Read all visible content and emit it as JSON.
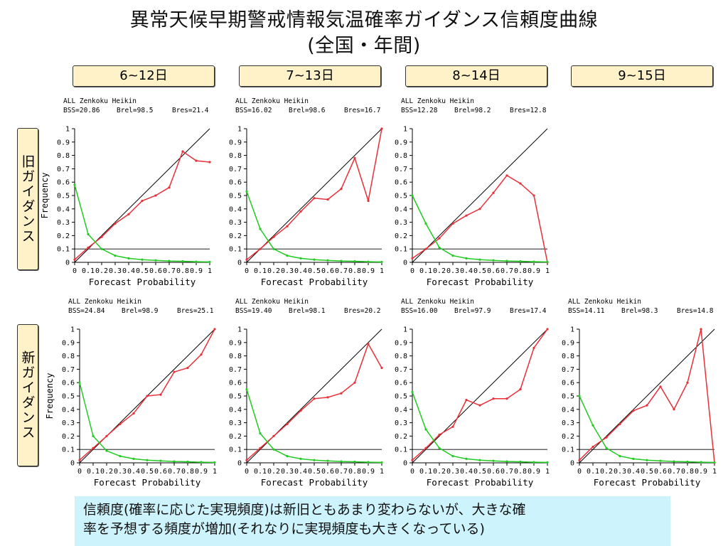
{
  "title": {
    "line1": "異常天候早期警戒情報気温確率ガイダンス信頼度曲線",
    "line2": "(全国・年間)"
  },
  "periods": [
    "6~12日",
    "7~13日",
    "8~14日",
    "9~15日"
  ],
  "rows": {
    "old": "旧ガイダンス",
    "new": "新ガイダンス"
  },
  "note": {
    "line1": "信頼度(確率に応じた実現頻度)は新旧ともあまり変わらないが、大きな確",
    "line2": "率を予想する頻度が増加(それなりに実現頻度も大きくなっている)"
  },
  "colors": {
    "reliability_line": "#e8303a",
    "frequency_line": "#22cc22",
    "diagonal": "#000000",
    "climatology": "#000000"
  },
  "chart_data": [
    {
      "type": "line",
      "panel": "旧ガイダンス 6~12日",
      "header": "ALL Zenkoku Heikin",
      "stats": {
        "BSS": "20.86",
        "Brel": "98.5",
        "Bres": "21.4"
      },
      "xlabel": "Forecast Probability",
      "ylabel": "Frequency",
      "xlim": [
        0,
        1
      ],
      "ylim": [
        0,
        1
      ],
      "climatology": 0.1,
      "xticks": [
        "0",
        "0.1",
        "0.2",
        "0.3",
        "0.4",
        "0.5",
        "0.6",
        "0.7",
        "0.8",
        "0.9",
        "1"
      ],
      "yticks": [
        "0",
        "0.1",
        "0.2",
        "0.3",
        "0.4",
        "0.5",
        "0.6",
        "0.7",
        "0.8",
        "0.9",
        "1"
      ],
      "series": [
        {
          "x": [
            0,
            0.1,
            0.2,
            0.3,
            0.4,
            0.5,
            0.6,
            0.7,
            0.8,
            0.9,
            1
          ],
          "values": [
            0.02,
            0.11,
            0.19,
            0.29,
            0.36,
            0.46,
            0.5,
            0.56,
            0.83,
            0.76,
            0.75
          ]
        },
        {
          "x": [
            0,
            0.1,
            0.2,
            0.3,
            0.4,
            0.5,
            0.6,
            0.7,
            0.8,
            0.9,
            1
          ],
          "values": [
            0.58,
            0.21,
            0.1,
            0.05,
            0.03,
            0.02,
            0.015,
            0.01,
            0.008,
            0.005,
            0.003
          ]
        }
      ]
    },
    {
      "type": "line",
      "panel": "旧ガイダンス 7~13日",
      "header": "ALL Zenkoku Heikin",
      "stats": {
        "BSS": "16.02",
        "Brel": "98.6",
        "Bres": "16.7"
      },
      "xlabel": "Forecast Probability",
      "ylabel": "",
      "xlim": [
        0,
        1
      ],
      "ylim": [
        0,
        1
      ],
      "climatology": 0.1,
      "xticks": [
        "0",
        "0.1",
        "0.2",
        "0.3",
        "0.4",
        "0.5",
        "0.6",
        "0.7",
        "0.8",
        "0.9",
        "1"
      ],
      "yticks": [
        "0",
        "0.1",
        "0.2",
        "0.3",
        "0.4",
        "0.5",
        "0.6",
        "0.7",
        "0.8",
        "0.9",
        "1"
      ],
      "series": [
        {
          "x": [
            0,
            0.1,
            0.2,
            0.3,
            0.4,
            0.5,
            0.6,
            0.7,
            0.8,
            0.9,
            1
          ],
          "values": [
            0.02,
            0.1,
            0.19,
            0.27,
            0.38,
            0.48,
            0.47,
            0.55,
            0.78,
            0.46,
            1.0
          ]
        },
        {
          "x": [
            0,
            0.1,
            0.2,
            0.3,
            0.4,
            0.5,
            0.6,
            0.7,
            0.8,
            0.9,
            1
          ],
          "values": [
            0.53,
            0.25,
            0.1,
            0.05,
            0.03,
            0.02,
            0.015,
            0.01,
            0.008,
            0.005,
            0.003
          ]
        }
      ]
    },
    {
      "type": "line",
      "panel": "旧ガイダンス 8~14日",
      "header": "ALL Zenkoku Heikin",
      "stats": {
        "BSS": "12.28",
        "Brel": "98.2",
        "Bres": "12.8"
      },
      "xlabel": "Forecast Probability",
      "ylabel": "",
      "xlim": [
        0,
        1
      ],
      "ylim": [
        0,
        1
      ],
      "climatology": 0.1,
      "xticks": [
        "0",
        "0.1",
        "0.2",
        "0.3",
        "0.4",
        "0.5",
        "0.6",
        "0.7",
        "0.8",
        "0.9",
        "1"
      ],
      "yticks": [
        "0",
        "0.1",
        "0.2",
        "0.3",
        "0.4",
        "0.5",
        "0.6",
        "0.7",
        "0.8",
        "0.9",
        "1"
      ],
      "series": [
        {
          "x": [
            0,
            0.1,
            0.2,
            0.3,
            0.4,
            0.5,
            0.6,
            0.7,
            0.8,
            0.9,
            1
          ],
          "values": [
            0.03,
            0.1,
            0.18,
            0.29,
            0.35,
            0.4,
            0.52,
            0.65,
            0.59,
            0.5,
            0.0
          ]
        },
        {
          "x": [
            0,
            0.1,
            0.2,
            0.3,
            0.4,
            0.5,
            0.6,
            0.7,
            0.8,
            0.9,
            1
          ],
          "values": [
            0.5,
            0.29,
            0.11,
            0.05,
            0.03,
            0.02,
            0.015,
            0.01,
            0.008,
            0.005,
            0.003
          ]
        }
      ]
    },
    {
      "type": "line",
      "panel": "新ガイダンス 6~12日",
      "header": "ALL Zenkoku Heikin",
      "stats": {
        "BSS": "24.84",
        "Brel": "98.9",
        "Bres": "25.1"
      },
      "xlabel": "Forecast Probability",
      "ylabel": "Frequency",
      "xlim": [
        0,
        1
      ],
      "ylim": [
        0,
        1
      ],
      "climatology": 0.1,
      "xticks": [
        "0",
        "0.1",
        "0.2",
        "0.3",
        "0.4",
        "0.5",
        "0.6",
        "0.7",
        "0.8",
        "0.9",
        "1"
      ],
      "yticks": [
        "0",
        "0.1",
        "0.2",
        "0.3",
        "0.4",
        "0.5",
        "0.6",
        "0.7",
        "0.8",
        "0.9",
        "1"
      ],
      "series": [
        {
          "x": [
            0,
            0.1,
            0.2,
            0.3,
            0.4,
            0.5,
            0.6,
            0.7,
            0.8,
            0.9,
            1
          ],
          "values": [
            0.02,
            0.11,
            0.2,
            0.29,
            0.37,
            0.5,
            0.51,
            0.68,
            0.71,
            0.81,
            1.0
          ]
        },
        {
          "x": [
            0,
            0.1,
            0.2,
            0.3,
            0.4,
            0.5,
            0.6,
            0.7,
            0.8,
            0.9,
            1
          ],
          "values": [
            0.6,
            0.2,
            0.09,
            0.05,
            0.03,
            0.02,
            0.015,
            0.01,
            0.008,
            0.005,
            0.003
          ]
        }
      ]
    },
    {
      "type": "line",
      "panel": "新ガイダンス 7~13日",
      "header": "ALL Zenkoku Heikin",
      "stats": {
        "BSS": "19.40",
        "Brel": "98.1",
        "Bres": "20.2"
      },
      "xlabel": "Forecast Probability",
      "ylabel": "",
      "xlim": [
        0,
        1
      ],
      "ylim": [
        0,
        1
      ],
      "climatology": 0.1,
      "xticks": [
        "0",
        "0.1",
        "0.2",
        "0.3",
        "0.4",
        "0.5",
        "0.6",
        "0.7",
        "0.8",
        "0.9",
        "1"
      ],
      "yticks": [
        "0",
        "0.1",
        "0.2",
        "0.3",
        "0.4",
        "0.5",
        "0.6",
        "0.7",
        "0.8",
        "0.9",
        "1"
      ],
      "series": [
        {
          "x": [
            0,
            0.1,
            0.2,
            0.3,
            0.4,
            0.5,
            0.6,
            0.7,
            0.8,
            0.9,
            1
          ],
          "values": [
            0.02,
            0.11,
            0.2,
            0.29,
            0.39,
            0.48,
            0.49,
            0.52,
            0.6,
            0.89,
            0.71
          ]
        },
        {
          "x": [
            0,
            0.1,
            0.2,
            0.3,
            0.4,
            0.5,
            0.6,
            0.7,
            0.8,
            0.9,
            1
          ],
          "values": [
            0.55,
            0.22,
            0.1,
            0.05,
            0.03,
            0.02,
            0.015,
            0.01,
            0.008,
            0.005,
            0.003
          ]
        }
      ]
    },
    {
      "type": "line",
      "panel": "新ガイダンス 8~14日",
      "header": "ALL Zenkoku Heikin",
      "stats": {
        "BSS": "16.00",
        "Brel": "97.9",
        "Bres": "17.4"
      },
      "xlabel": "Forecast Probability",
      "ylabel": "",
      "xlim": [
        0,
        1
      ],
      "ylim": [
        0,
        1
      ],
      "climatology": 0.1,
      "xticks": [
        "0",
        "0.1",
        "0.2",
        "0.3",
        "0.4",
        "0.5",
        "0.6",
        "0.7",
        "0.8",
        "0.9",
        "1"
      ],
      "yticks": [
        "0",
        "0.1",
        "0.2",
        "0.3",
        "0.4",
        "0.5",
        "0.6",
        "0.7",
        "0.8",
        "0.9",
        "1"
      ],
      "series": [
        {
          "x": [
            0,
            0.1,
            0.2,
            0.3,
            0.4,
            0.5,
            0.6,
            0.7,
            0.8,
            0.9,
            1
          ],
          "values": [
            0.02,
            0.11,
            0.21,
            0.27,
            0.47,
            0.43,
            0.48,
            0.48,
            0.55,
            0.86,
            1.0
          ]
        },
        {
          "x": [
            0,
            0.1,
            0.2,
            0.3,
            0.4,
            0.5,
            0.6,
            0.7,
            0.8,
            0.9,
            1
          ],
          "values": [
            0.53,
            0.25,
            0.11,
            0.05,
            0.03,
            0.02,
            0.015,
            0.01,
            0.008,
            0.005,
            0.003
          ]
        }
      ]
    },
    {
      "type": "line",
      "panel": "新ガイダンス 9~15日",
      "header": "ALL Zenkoku Heikin",
      "stats": {
        "BSS": "14.11",
        "Brel": "98.3",
        "Bres": "14.8"
      },
      "xlabel": "Forecast Probability",
      "ylabel": "",
      "xlim": [
        0,
        1
      ],
      "ylim": [
        0,
        1
      ],
      "climatology": 0.1,
      "xticks": [
        "0",
        "0.1",
        "0.2",
        "0.3",
        "0.4",
        "0.5",
        "0.6",
        "0.7",
        "0.8",
        "0.9",
        "1"
      ],
      "yticks": [
        "0",
        "0.1",
        "0.2",
        "0.3",
        "0.4",
        "0.5",
        "0.6",
        "0.7",
        "0.8",
        "0.9",
        "1"
      ],
      "series": [
        {
          "x": [
            0,
            0.1,
            0.2,
            0.3,
            0.4,
            0.5,
            0.6,
            0.7,
            0.8,
            0.9,
            1
          ],
          "values": [
            0.02,
            0.12,
            0.19,
            0.29,
            0.39,
            0.43,
            0.57,
            0.4,
            0.6,
            1.0,
            0.0
          ]
        },
        {
          "x": [
            0,
            0.1,
            0.2,
            0.3,
            0.4,
            0.5,
            0.6,
            0.7,
            0.8,
            0.9,
            1
          ],
          "values": [
            0.5,
            0.28,
            0.11,
            0.05,
            0.03,
            0.02,
            0.015,
            0.01,
            0.008,
            0.005,
            0.003
          ]
        }
      ]
    }
  ]
}
